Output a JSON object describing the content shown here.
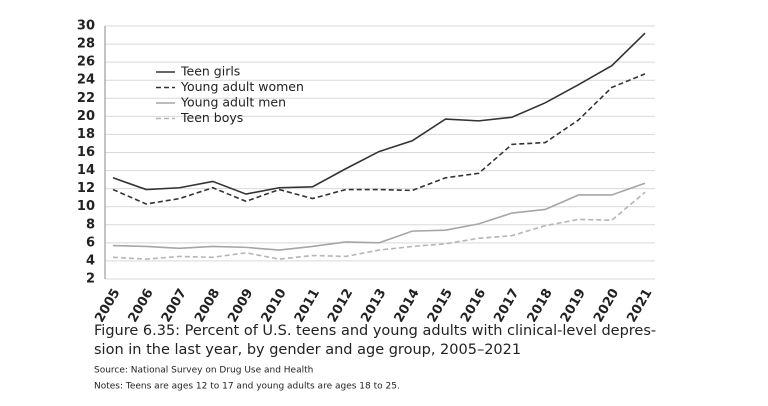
{
  "chart_data": {
    "type": "line",
    "caption": [
      "Figure 6.35: Percent of U.S. teens and young adults with clinical-level depres-",
      "sion in the last year, by gender and age group, 2005–2021"
    ],
    "source": "Source: National Survey on Drug Use and Health",
    "notes": "Notes: Teens are ages 12 to 17 and young adults are ages 18 to 25.",
    "categories": [
      "2005",
      "2006",
      "2007",
      "2008",
      "2009",
      "2010",
      "2011",
      "2012",
      "2013",
      "2014",
      "2015",
      "2016",
      "2017",
      "2018",
      "2019",
      "2020",
      "2021"
    ],
    "series": [
      {
        "name": "Teen girls",
        "color": "#333333",
        "dash": false,
        "values": [
          13.2,
          11.9,
          12.1,
          12.8,
          11.4,
          12.1,
          12.2,
          14.2,
          16.1,
          17.3,
          19.7,
          19.5,
          19.9,
          21.5,
          23.5,
          25.6,
          29.2
        ]
      },
      {
        "name": "Young adult women",
        "color": "#333333",
        "dash": true,
        "values": [
          11.9,
          10.3,
          10.9,
          12.1,
          10.6,
          11.9,
          10.9,
          11.9,
          11.9,
          11.8,
          13.2,
          13.7,
          16.9,
          17.1,
          19.6,
          23.2,
          24.7
        ]
      },
      {
        "name": "Young adult men",
        "color": "#a6a6a6",
        "dash": false,
        "values": [
          5.7,
          5.6,
          5.4,
          5.6,
          5.5,
          5.2,
          5.6,
          6.1,
          6.0,
          7.3,
          7.4,
          8.1,
          9.3,
          9.7,
          11.3,
          11.3,
          12.6
        ]
      },
      {
        "name": "Teen boys",
        "color": "#b5b5b5",
        "dash": true,
        "values": [
          4.4,
          4.2,
          4.5,
          4.4,
          4.9,
          4.2,
          4.6,
          4.5,
          5.2,
          5.6,
          5.9,
          6.5,
          6.8,
          7.9,
          8.6,
          8.5,
          11.6
        ]
      }
    ],
    "ylim": [
      2,
      30
    ],
    "yticks": [
      2,
      4,
      6,
      8,
      10,
      12,
      14,
      16,
      18,
      20,
      22,
      24,
      26,
      28,
      30
    ],
    "grid": true
  }
}
